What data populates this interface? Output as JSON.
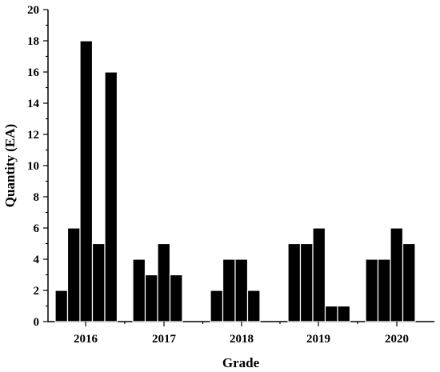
{
  "chart_data": {
    "type": "bar",
    "xlabel": "Grade",
    "ylabel": "Quantity (EA)",
    "ylim": [
      0,
      20
    ],
    "yticks": [
      "0",
      "2",
      "4",
      "6",
      "8",
      "10",
      "12",
      "14",
      "16",
      "18",
      "20"
    ],
    "grid": false,
    "categories": [
      "2016",
      "2017",
      "2018",
      "2019",
      "2020"
    ],
    "groups": [
      {
        "category": "2016",
        "values": [
          2,
          6,
          18,
          5,
          16
        ]
      },
      {
        "category": "2017",
        "values": [
          4,
          3,
          5,
          3
        ]
      },
      {
        "category": "2018",
        "values": [
          2,
          4,
          4,
          2
        ]
      },
      {
        "category": "2019",
        "values": [
          5,
          5,
          6,
          1,
          1
        ]
      },
      {
        "category": "2020",
        "values": [
          4,
          4,
          6,
          5
        ]
      }
    ],
    "bar_color": "#000000"
  }
}
